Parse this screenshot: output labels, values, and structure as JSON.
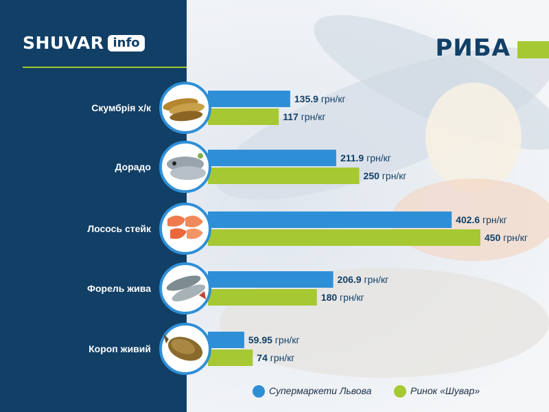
{
  "logo": {
    "word": "SHUVAR",
    "badge": "info"
  },
  "title": "РИБА",
  "colors": {
    "sidebar": "#113f66",
    "series_blue": "#2f8fd6",
    "series_green": "#a6c832",
    "text_dark": "#113f66",
    "background": "#f2f5f8"
  },
  "item_icons": [
    "smoked-mackerel-image",
    "dorado-fish-image",
    "salmon-steak-image",
    "trout-image",
    "carp-image"
  ],
  "chart_data": {
    "type": "bar",
    "orientation": "horizontal",
    "title": "РИБА",
    "categories": [
      "Скумбрія х/к",
      "Дорадо",
      "Лосось стейк",
      "Форель жива",
      "Короп живий"
    ],
    "unit": "грн/кг",
    "series": [
      {
        "name": "Супермаркети Львова",
        "color": "#2f8fd6",
        "values": [
          135.9,
          211.9,
          402.6,
          206.9,
          59.95
        ],
        "labels": [
          "135.9",
          "211.9",
          "402.6",
          "206.9",
          "59.95"
        ]
      },
      {
        "name": "Ринок «Шувар»",
        "color": "#a6c832",
        "values": [
          117,
          250,
          450,
          180,
          74
        ],
        "labels": [
          "117",
          "250",
          "450",
          "180",
          "74"
        ]
      }
    ],
    "xlim": [
      0,
      450
    ],
    "grid": false,
    "legend_position": "bottom-right"
  }
}
